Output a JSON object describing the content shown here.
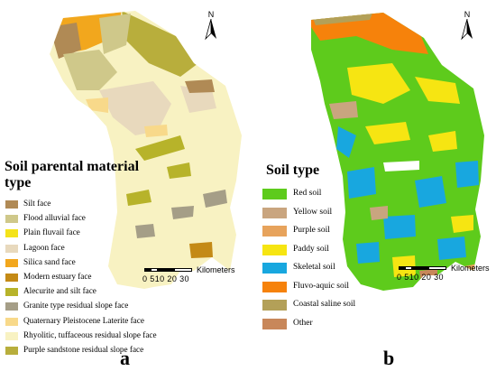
{
  "panel_a": {
    "letter": "a",
    "legend_title": "Soil parental material type",
    "north_label": "N",
    "scale_unit": "Kilometers",
    "scale_ticks": "0 510  20  30",
    "items": [
      {
        "label": "Silt face",
        "color": "#b08a55"
      },
      {
        "label": "Flood alluvial face",
        "color": "#cfc88a"
      },
      {
        "label": "Plain fluvail face",
        "color": "#f4e31a"
      },
      {
        "label": "Lagoon face",
        "color": "#e8d9bd"
      },
      {
        "label": "Silica sand face",
        "color": "#f2a71d"
      },
      {
        "label": "Modern estuary face",
        "color": "#c48a16"
      },
      {
        "label": "Alecurite and silt face",
        "color": "#b7b32a"
      },
      {
        "label": "Granite type residual slope face",
        "color": "#a59e87"
      },
      {
        "label": "Quaternary Pleistocene Laterite face",
        "color": "#f8d98a"
      },
      {
        "label": "Rhyolitic, tuffaceous residual slope face",
        "color": "#f8f2c2"
      },
      {
        "label": "Purple sandstone residual slope face",
        "color": "#b8ae3c"
      }
    ]
  },
  "panel_b": {
    "letter": "b",
    "legend_title": "Soil type",
    "north_label": "N",
    "scale_unit": "Kilometers",
    "scale_ticks": "0 510  20  30",
    "items": [
      {
        "label": "Red soil",
        "color": "#5ecb1c"
      },
      {
        "label": "Yellow soil",
        "color": "#c9a57f"
      },
      {
        "label": "Purple soil",
        "color": "#e7a35c"
      },
      {
        "label": "Paddy soil",
        "color": "#f6e512"
      },
      {
        "label": "Skeletal soil",
        "color": "#18a7df"
      },
      {
        "label": "Fluvo-aquic soil",
        "color": "#f6820b"
      },
      {
        "label": "Coastal saline soil",
        "color": "#b3a058"
      },
      {
        "label": "Other",
        "color": "#c8875a"
      }
    ]
  }
}
